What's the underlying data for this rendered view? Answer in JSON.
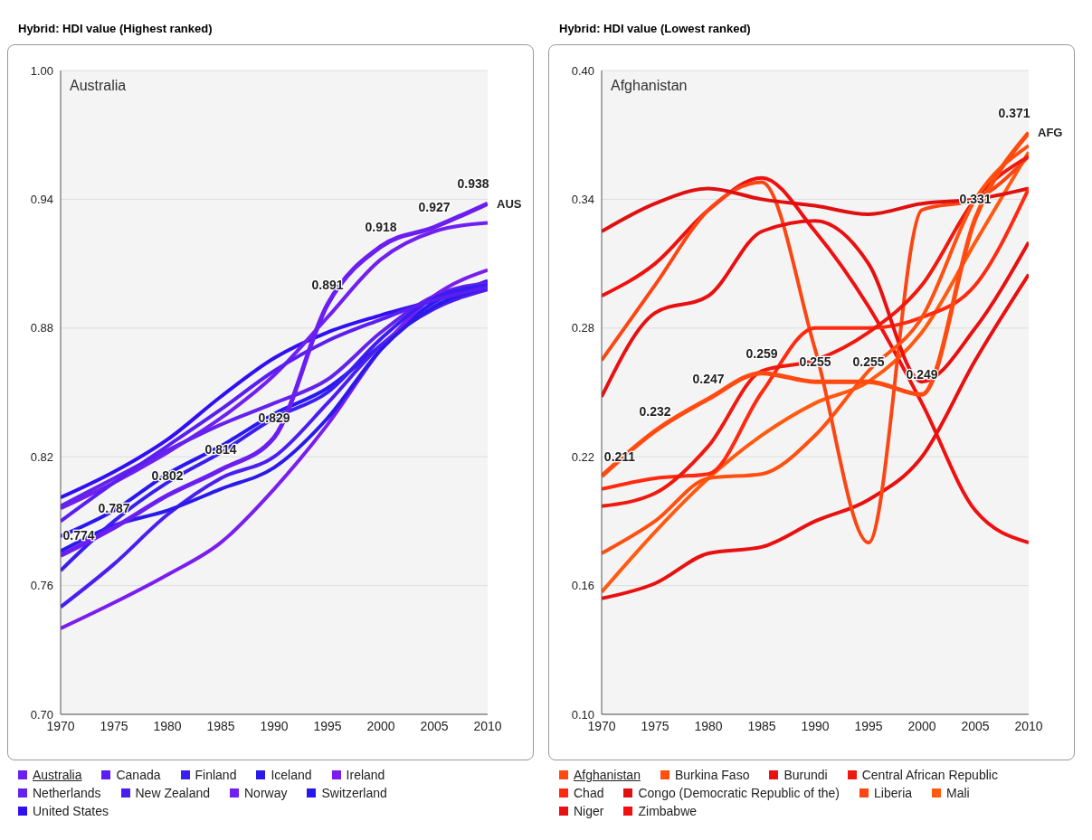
{
  "chart_data": [
    {
      "type": "line",
      "title": "Hybrid: HDI value (Highest ranked)",
      "x": [
        1970,
        1975,
        1980,
        1985,
        1990,
        1995,
        2000,
        2005,
        2010
      ],
      "xlim": [
        1970,
        2010
      ],
      "xticks": [
        1970,
        1975,
        1980,
        1985,
        1990,
        1995,
        2000,
        2005,
        2010
      ],
      "ylim": [
        0.7,
        1.0
      ],
      "yticks": [
        {
          "value": 0.7,
          "label": "0.70"
        },
        0.76,
        0.82,
        0.88,
        0.94,
        {
          "value": 1.0,
          "label": "1.00"
        }
      ],
      "grid": "y",
      "legend": "bottom",
      "marker": "none",
      "annotations": [
        "Australia",
        {
          "text": "AUS",
          "x": 2010,
          "y": 0.938
        }
      ],
      "series": [
        {
          "name": "Australia",
          "color": "#6a1ef0",
          "values": [
            0.774,
            0.787,
            0.802,
            0.814,
            0.829,
            0.891,
            0.918,
            0.927,
            0.938
          ],
          "value_labels": [
            "0.774",
            "0.787",
            "0.802",
            "0.814",
            "0.829",
            "0.891",
            "0.918",
            "0.927",
            "0.938"
          ]
        },
        {
          "name": "Canada",
          "color": "#5a1ef0",
          "values": [
            0.79,
            0.808,
            0.825,
            0.842,
            0.86,
            0.874,
            0.884,
            0.893,
            0.899
          ]
        },
        {
          "name": "Finland",
          "color": "#3a1ef0",
          "values": [
            0.767,
            0.79,
            0.808,
            0.822,
            0.838,
            0.85,
            0.875,
            0.894,
            0.9
          ]
        },
        {
          "name": "Iceland",
          "color": "#2a1ae8",
          "values": [
            0.776,
            0.788,
            0.795,
            0.805,
            0.815,
            0.838,
            0.87,
            0.89,
            0.899
          ]
        },
        {
          "name": "Ireland",
          "color": "#7a1ef0",
          "values": [
            0.74,
            0.752,
            0.765,
            0.78,
            0.805,
            0.835,
            0.87,
            0.895,
            0.907
          ]
        },
        {
          "name": "Netherlands",
          "color": "#6422ec",
          "values": [
            0.797,
            0.81,
            0.823,
            0.835,
            0.845,
            0.856,
            0.878,
            0.895,
            0.901
          ]
        },
        {
          "name": "New Zealand",
          "color": "#4a1ef0",
          "values": [
            0.75,
            0.77,
            0.793,
            0.81,
            0.82,
            0.845,
            0.872,
            0.889,
            0.898
          ]
        },
        {
          "name": "Norway",
          "color": "#7020f0",
          "values": [
            0.796,
            0.808,
            0.822,
            0.838,
            0.858,
            0.885,
            0.912,
            0.925,
            0.929
          ]
        },
        {
          "name": "Switzerland",
          "color": "#2818f0",
          "values": [
            0.783,
            0.795,
            0.812,
            0.825,
            0.84,
            0.852,
            0.872,
            0.892,
            0.9
          ]
        },
        {
          "name": "United States",
          "color": "#3010f0",
          "values": [
            0.801,
            0.813,
            0.828,
            0.848,
            0.866,
            0.878,
            0.886,
            0.893,
            0.902
          ]
        }
      ]
    },
    {
      "type": "line",
      "title": "Hybrid: HDI value (Lowest ranked)",
      "x": [
        1970,
        1975,
        1980,
        1985,
        1990,
        1995,
        2000,
        2005,
        2010
      ],
      "xlim": [
        1970,
        2010
      ],
      "xticks": [
        1970,
        1975,
        1980,
        1985,
        1990,
        1995,
        2000,
        2005,
        2010
      ],
      "ylim": [
        0.1,
        0.4
      ],
      "yticks": [
        {
          "value": 0.1,
          "label": "0.10"
        },
        0.16,
        0.22,
        0.28,
        0.34,
        {
          "value": 0.4,
          "label": "0.40"
        }
      ],
      "grid": "y",
      "legend": "bottom",
      "marker": "none",
      "annotations": [
        "Afghanistan",
        {
          "text": "AFG",
          "x": 2010,
          "y": 0.371
        }
      ],
      "series": [
        {
          "name": "Afghanistan",
          "color": "#ff4a10",
          "values": [
            0.211,
            0.232,
            0.247,
            0.259,
            0.255,
            0.255,
            0.249,
            0.331,
            0.371
          ],
          "value_labels": [
            "0.211",
            "0.232",
            "0.247",
            "0.259",
            "0.255",
            "0.255",
            "0.249",
            "0.331",
            "0.371"
          ]
        },
        {
          "name": "Burkina Faso",
          "color": "#ff5010",
          "values": [
            0.175,
            0.19,
            0.21,
            0.212,
            0.23,
            0.26,
            0.285,
            0.34,
            0.365
          ]
        },
        {
          "name": "Burundi",
          "color": "#e81010",
          "values": [
            0.248,
            0.287,
            0.295,
            0.325,
            0.33,
            0.31,
            0.255,
            0.28,
            0.32
          ]
        },
        {
          "name": "Central African Republic",
          "color": "#ee1a10",
          "values": [
            0.197,
            0.203,
            0.225,
            0.26,
            0.265,
            0.278,
            0.3,
            0.34,
            0.36
          ]
        },
        {
          "name": "Chad",
          "color": "#ff2a10",
          "values": [
            0.205,
            0.21,
            0.212,
            0.25,
            0.28,
            0.28,
            0.285,
            0.3,
            0.345
          ]
        },
        {
          "name": "Congo (Democratic Republic of the)",
          "color": "#e01010",
          "values": [
            0.325,
            0.338,
            0.345,
            0.34,
            0.337,
            0.333,
            0.338,
            0.34,
            0.345
          ]
        },
        {
          "name": "Liberia",
          "color": "#fb4614",
          "values": [
            0.265,
            0.3,
            0.335,
            0.348,
            0.27,
            0.18,
            0.335,
            0.34,
            0.36
          ]
        },
        {
          "name": "Mali",
          "color": "#ff5a10",
          "values": [
            0.157,
            0.185,
            0.21,
            0.23,
            0.245,
            0.255,
            0.278,
            0.32,
            0.362
          ]
        },
        {
          "name": "Niger",
          "color": "#e81010",
          "values": [
            0.154,
            0.161,
            0.175,
            0.178,
            0.19,
            0.2,
            0.22,
            0.265,
            0.305
          ]
        },
        {
          "name": "Zimbabwe",
          "color": "#f01010",
          "values": [
            0.295,
            0.31,
            0.335,
            0.35,
            0.325,
            0.29,
            0.245,
            0.195,
            0.18
          ]
        }
      ]
    }
  ]
}
